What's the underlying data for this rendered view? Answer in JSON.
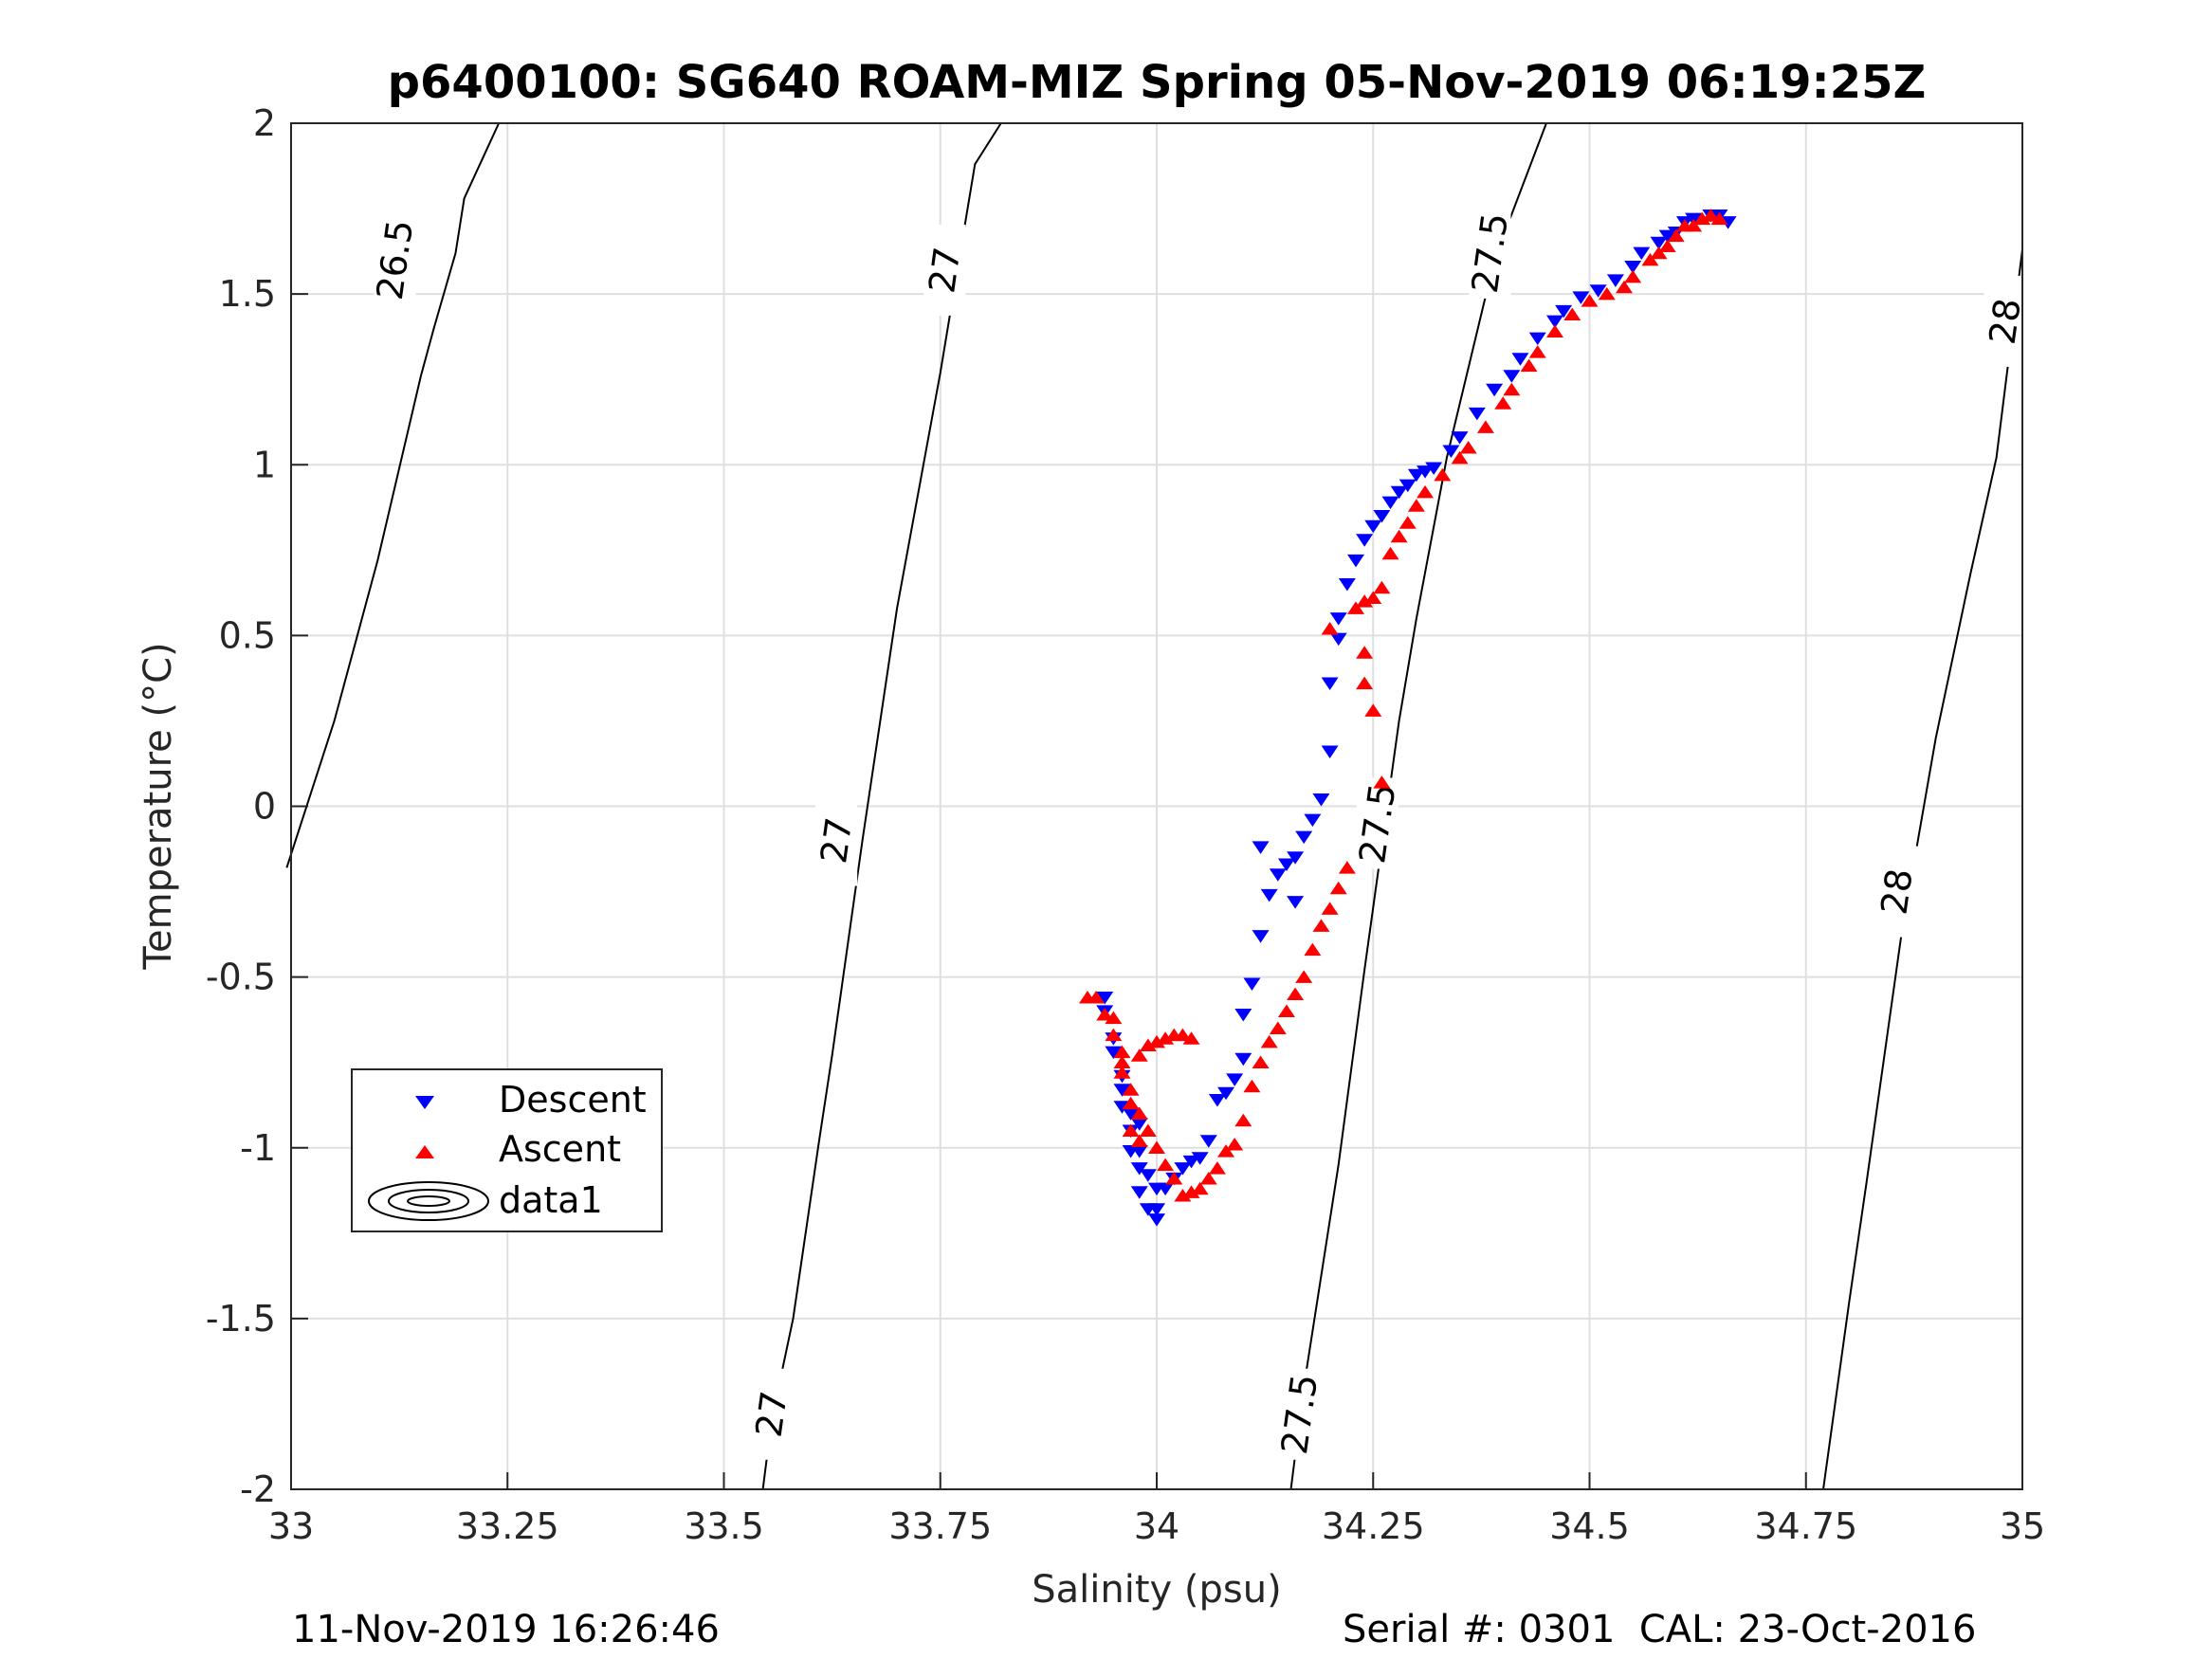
{
  "chart_data": {
    "type": "scatter",
    "title": "p6400100: SG640 ROAM-MIZ Spring 05-Nov-2019 06:19:25Z",
    "xlabel": "Salinity (psu)",
    "ylabel": "Temperature (°C)",
    "xlim": [
      33,
      35
    ],
    "ylim": [
      -2,
      2
    ],
    "x_ticks": [
      33,
      33.25,
      33.5,
      33.75,
      34,
      34.25,
      34.5,
      34.75,
      35
    ],
    "x_tick_labels": [
      "33",
      "33.25",
      "33.5",
      "33.75",
      "34",
      "34.25",
      "34.5",
      "34.75",
      "35"
    ],
    "y_ticks": [
      -2,
      -1.5,
      -1,
      -0.5,
      0,
      0.5,
      1,
      1.5,
      2
    ],
    "y_tick_labels": [
      "-2",
      "-1.5",
      "-1",
      "-0.5",
      "0",
      "0.5",
      "1",
      "1.5",
      "2"
    ],
    "grid": true,
    "legend_position": "lower-left",
    "legend": [
      {
        "label": "Descent",
        "marker": "triangle-down",
        "color": "#0000ff"
      },
      {
        "label": "Ascent",
        "marker": "triangle-up",
        "color": "#ff0000"
      },
      {
        "label": "data1",
        "marker": "contour",
        "color": "#000000"
      }
    ],
    "density_contours": [
      {
        "level": "26.5",
        "points": [
          [
            32.995,
            -0.18
          ],
          [
            33.05,
            0.25
          ],
          [
            33.1,
            0.72
          ],
          [
            33.15,
            1.26
          ],
          [
            33.165,
            1.4
          ],
          [
            33.19,
            1.62
          ],
          [
            33.2,
            1.78
          ],
          [
            33.24,
            2.0
          ]
        ],
        "labels": [
          {
            "text": "26.5",
            "x": 33.12,
            "y": 1.6
          }
        ]
      },
      {
        "level": "27",
        "points": [
          [
            33.545,
            -2.0
          ],
          [
            33.555,
            -1.8
          ],
          [
            33.58,
            -1.5
          ],
          [
            33.61,
            -0.98
          ],
          [
            33.625,
            -0.73
          ],
          [
            33.66,
            -0.1
          ],
          [
            33.7,
            0.58
          ],
          [
            33.75,
            1.27
          ],
          [
            33.79,
            1.88
          ],
          [
            33.82,
            2.0
          ]
        ],
        "labels": [
          {
            "text": "27",
            "x": 33.555,
            "y": -1.78
          },
          {
            "text": "27",
            "x": 33.63,
            "y": -0.1
          },
          {
            "text": "27",
            "x": 33.755,
            "y": 1.57
          }
        ]
      },
      {
        "level": "27.5",
        "points": [
          [
            34.155,
            -2.0
          ],
          [
            34.17,
            -1.7
          ],
          [
            34.21,
            -1.05
          ],
          [
            34.24,
            -0.48
          ],
          [
            34.28,
            0.25
          ],
          [
            34.3,
            0.55
          ],
          [
            34.335,
            1.02
          ],
          [
            34.39,
            1.6
          ],
          [
            34.45,
            2.0
          ]
        ],
        "labels": [
          {
            "text": "27.5",
            "x": 34.165,
            "y": -1.78
          },
          {
            "text": "27.5",
            "x": 34.255,
            "y": -0.05
          },
          {
            "text": "27.5",
            "x": 34.385,
            "y": 1.62
          }
        ]
      },
      {
        "level": "28",
        "points": [
          [
            34.77,
            -2.0
          ],
          [
            34.8,
            -1.45
          ],
          [
            34.82,
            -1.1
          ],
          [
            34.86,
            -0.38
          ],
          [
            34.9,
            0.2
          ],
          [
            34.94,
            0.68
          ],
          [
            34.97,
            1.02
          ],
          [
            35.0,
            1.63
          ]
        ],
        "labels": [
          {
            "text": "28",
            "x": 34.855,
            "y": -0.25
          },
          {
            "text": "28",
            "x": 34.98,
            "y": 1.42
          }
        ]
      }
    ],
    "series": [
      {
        "name": "Descent",
        "marker": "triangle-down",
        "color": "#0000ff",
        "points": [
          [
            34.66,
            1.71
          ],
          [
            34.65,
            1.73
          ],
          [
            34.64,
            1.73
          ],
          [
            34.62,
            1.72
          ],
          [
            34.61,
            1.71
          ],
          [
            34.6,
            1.68
          ],
          [
            34.59,
            1.67
          ],
          [
            34.58,
            1.65
          ],
          [
            34.56,
            1.62
          ],
          [
            34.55,
            1.58
          ],
          [
            34.53,
            1.54
          ],
          [
            34.51,
            1.51
          ],
          [
            34.49,
            1.49
          ],
          [
            34.47,
            1.45
          ],
          [
            34.46,
            1.42
          ],
          [
            34.44,
            1.37
          ],
          [
            34.42,
            1.31
          ],
          [
            34.41,
            1.26
          ],
          [
            34.39,
            1.22
          ],
          [
            34.37,
            1.15
          ],
          [
            34.35,
            1.08
          ],
          [
            34.34,
            1.04
          ],
          [
            34.32,
            0.99
          ],
          [
            34.31,
            0.98
          ],
          [
            34.3,
            0.97
          ],
          [
            34.29,
            0.94
          ],
          [
            34.28,
            0.92
          ],
          [
            34.27,
            0.89
          ],
          [
            34.26,
            0.85
          ],
          [
            34.25,
            0.82
          ],
          [
            34.24,
            0.78
          ],
          [
            34.23,
            0.72
          ],
          [
            34.22,
            0.65
          ],
          [
            34.21,
            0.55
          ],
          [
            34.21,
            0.49
          ],
          [
            34.2,
            0.36
          ],
          [
            34.2,
            0.16
          ],
          [
            34.19,
            0.02
          ],
          [
            34.18,
            -0.04
          ],
          [
            34.17,
            -0.09
          ],
          [
            34.16,
            -0.15
          ],
          [
            34.16,
            -0.28
          ],
          [
            34.15,
            -0.17
          ],
          [
            34.14,
            -0.2
          ],
          [
            34.13,
            -0.26
          ],
          [
            34.12,
            -0.38
          ],
          [
            34.12,
            -0.12
          ],
          [
            34.11,
            -0.52
          ],
          [
            34.1,
            -0.61
          ],
          [
            34.1,
            -0.74
          ],
          [
            34.09,
            -0.8
          ],
          [
            34.08,
            -0.84
          ],
          [
            34.07,
            -0.86
          ],
          [
            34.06,
            -0.98
          ],
          [
            34.05,
            -1.03
          ],
          [
            34.04,
            -1.04
          ],
          [
            34.03,
            -1.06
          ],
          [
            34.02,
            -1.09
          ],
          [
            34.01,
            -1.12
          ],
          [
            34.0,
            -1.18
          ],
          [
            34.0,
            -1.21
          ],
          [
            33.99,
            -1.18
          ],
          [
            33.98,
            -1.13
          ],
          [
            33.98,
            -1.06
          ],
          [
            33.97,
            -1.01
          ],
          [
            33.97,
            -0.95
          ],
          [
            33.96,
            -0.88
          ],
          [
            33.96,
            -0.79
          ],
          [
            33.95,
            -0.72
          ],
          [
            33.95,
            -0.68
          ],
          [
            33.94,
            -0.6
          ],
          [
            33.94,
            -0.56
          ],
          [
            33.96,
            -0.83
          ],
          [
            33.97,
            -0.9
          ],
          [
            33.98,
            -0.93
          ],
          [
            33.98,
            -1.01
          ],
          [
            33.99,
            -1.08
          ],
          [
            34.0,
            -1.12
          ]
        ]
      },
      {
        "name": "Ascent",
        "marker": "triangle-up",
        "color": "#ff0000",
        "points": [
          [
            34.65,
            1.72
          ],
          [
            34.64,
            1.73
          ],
          [
            34.63,
            1.72
          ],
          [
            34.62,
            1.7
          ],
          [
            34.61,
            1.7
          ],
          [
            34.6,
            1.67
          ],
          [
            34.59,
            1.64
          ],
          [
            34.58,
            1.62
          ],
          [
            34.57,
            1.6
          ],
          [
            34.55,
            1.55
          ],
          [
            34.54,
            1.52
          ],
          [
            34.52,
            1.5
          ],
          [
            34.5,
            1.48
          ],
          [
            34.48,
            1.44
          ],
          [
            34.46,
            1.39
          ],
          [
            34.44,
            1.33
          ],
          [
            34.43,
            1.29
          ],
          [
            34.41,
            1.22
          ],
          [
            34.4,
            1.18
          ],
          [
            34.38,
            1.11
          ],
          [
            34.36,
            1.05
          ],
          [
            34.35,
            1.02
          ],
          [
            34.33,
            0.97
          ],
          [
            34.31,
            0.92
          ],
          [
            34.3,
            0.88
          ],
          [
            34.29,
            0.83
          ],
          [
            34.28,
            0.79
          ],
          [
            34.27,
            0.74
          ],
          [
            34.26,
            0.64
          ],
          [
            34.25,
            0.61
          ],
          [
            34.24,
            0.6
          ],
          [
            34.23,
            0.58
          ],
          [
            34.2,
            0.52
          ],
          [
            34.24,
            0.45
          ],
          [
            34.24,
            0.36
          ],
          [
            34.25,
            0.28
          ],
          [
            34.26,
            0.07
          ],
          [
            34.22,
            -0.18
          ],
          [
            34.21,
            -0.24
          ],
          [
            34.2,
            -0.3
          ],
          [
            34.19,
            -0.35
          ],
          [
            34.18,
            -0.42
          ],
          [
            34.17,
            -0.5
          ],
          [
            34.16,
            -0.55
          ],
          [
            34.15,
            -0.6
          ],
          [
            34.14,
            -0.65
          ],
          [
            34.13,
            -0.69
          ],
          [
            34.12,
            -0.75
          ],
          [
            34.11,
            -0.82
          ],
          [
            34.1,
            -0.92
          ],
          [
            34.09,
            -0.99
          ],
          [
            34.08,
            -1.01
          ],
          [
            34.07,
            -1.06
          ],
          [
            34.06,
            -1.09
          ],
          [
            34.05,
            -1.12
          ],
          [
            34.04,
            -1.13
          ],
          [
            34.03,
            -1.14
          ],
          [
            34.02,
            -1.09
          ],
          [
            34.01,
            -1.05
          ],
          [
            34.0,
            -1.0
          ],
          [
            33.99,
            -0.95
          ],
          [
            33.98,
            -0.9
          ],
          [
            33.97,
            -0.83
          ],
          [
            33.96,
            -0.75
          ],
          [
            33.95,
            -0.67
          ],
          [
            33.94,
            -0.61
          ],
          [
            33.93,
            -0.56
          ],
          [
            33.92,
            -0.56
          ],
          [
            33.95,
            -0.62
          ],
          [
            33.96,
            -0.72
          ],
          [
            33.96,
            -0.78
          ],
          [
            33.97,
            -0.87
          ],
          [
            33.97,
            -0.95
          ],
          [
            33.98,
            -0.98
          ],
          [
            33.98,
            -0.73
          ],
          [
            33.99,
            -0.7
          ],
          [
            34.0,
            -0.69
          ],
          [
            34.01,
            -0.68
          ],
          [
            34.02,
            -0.67
          ],
          [
            34.03,
            -0.67
          ],
          [
            34.04,
            -0.68
          ]
        ]
      }
    ]
  },
  "footer": {
    "timestamp": "11-Nov-2019 16:26:46",
    "serial": "Serial #: 0301  CAL: 23-Oct-2016"
  }
}
